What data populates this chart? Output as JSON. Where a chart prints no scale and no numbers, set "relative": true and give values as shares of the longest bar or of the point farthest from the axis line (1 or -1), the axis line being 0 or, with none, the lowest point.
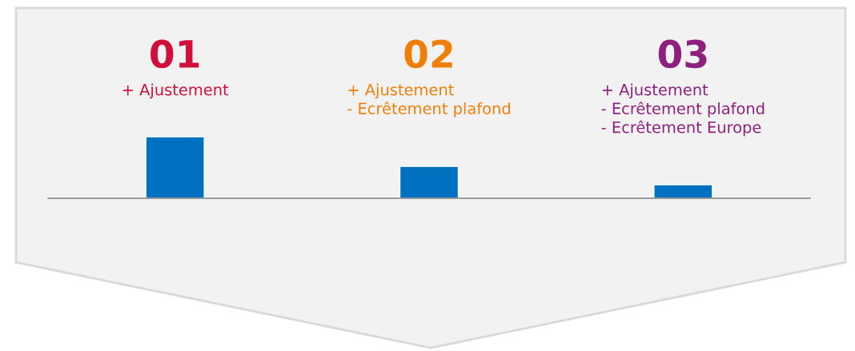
{
  "chart_data": {
    "type": "bar",
    "relative": true,
    "categories": [
      "01",
      "02",
      "03"
    ],
    "values": [
      1,
      0.52,
      0.22
    ],
    "color": "#0070c0",
    "annotations": [
      "+ Ajustement",
      "+ Ajustement\n- Ecrêtement plafond",
      "+ Ajustement\n- Ecrêtement plafond\n- Ecrêtement Europe"
    ],
    "grid": false,
    "legend": false
  }
}
